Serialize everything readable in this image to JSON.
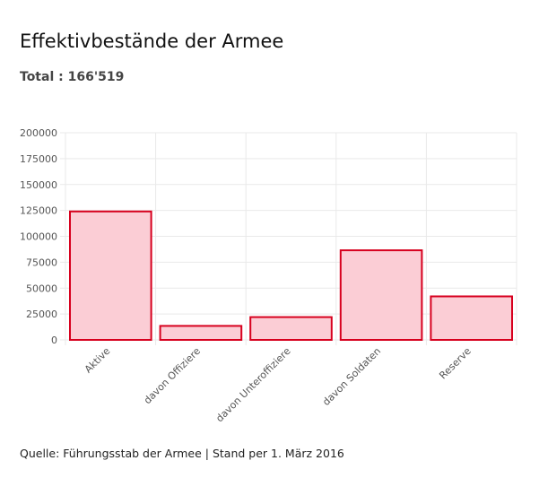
{
  "title": "Effektivbestände der Armee",
  "subtitle": "Total : 166'519",
  "source": "Quelle: Führungsstab der Armee | Stand per 1. März 2016",
  "colors": {
    "bar_fill": "#fbcdd5",
    "bar_stroke": "#d7001e",
    "grid": "#e9e9e9",
    "axis_text": "#555555"
  },
  "chart_data": {
    "type": "bar",
    "categories": [
      "Aktive",
      "davon Offiziere",
      "davon Unteroffiziere",
      "davon Soldaten",
      "Reserve"
    ],
    "values": [
      124000,
      13500,
      22000,
      86500,
      42000
    ],
    "title": "Effektivbestände der Armee",
    "xlabel": "",
    "ylabel": "",
    "ylim": [
      0,
      200000
    ],
    "yticks": [
      "0",
      "25000",
      "50000",
      "75000",
      "100000",
      "125000",
      "150000",
      "175000",
      "200000"
    ],
    "grid": true,
    "legend": "none"
  }
}
